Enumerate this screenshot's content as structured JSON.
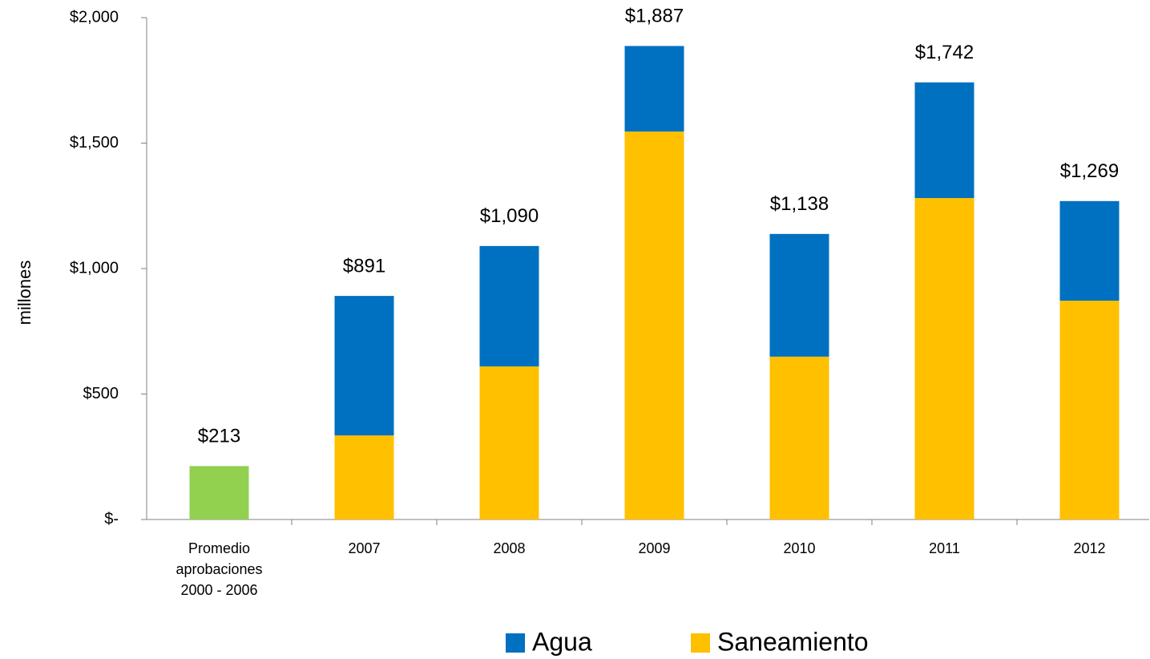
{
  "chart_data": {
    "type": "stacked_bar",
    "ylabel": "millones",
    "categories": [
      "Promedio aprobaciones 2000 - 2006",
      "2007",
      "2008",
      "2009",
      "2010",
      "2011",
      "2012"
    ],
    "series": [
      {
        "name": "Saneamiento",
        "color": "#ffc000",
        "values": [
          null,
          335,
          610,
          1546,
          649,
          1281,
          872
        ]
      },
      {
        "name": "Agua",
        "color": "#0070c0",
        "values": [
          null,
          556,
          480,
          341,
          489,
          461,
          397
        ]
      },
      {
        "color": "#92d050",
        "values": [
          213,
          null,
          null,
          null,
          null,
          null,
          null
        ]
      }
    ],
    "totals": [
      213,
      891,
      1090,
      1887,
      1138,
      1742,
      1269
    ],
    "value_labels": [
      "$213",
      "$891",
      "$1,090",
      "$1,887",
      "$1,138",
      "$1,742",
      "$1,269"
    ],
    "legend_order": [
      1,
      0
    ],
    "ylim": [
      0,
      2000
    ],
    "yticks": [
      {
        "value": 0,
        "label": "$-"
      },
      {
        "value": 500,
        "label": "$500"
      },
      {
        "value": 1000,
        "label": "$1,000"
      },
      {
        "value": 1500,
        "label": "$1,500"
      },
      {
        "value": 2000,
        "label": "$2,000"
      }
    ]
  }
}
